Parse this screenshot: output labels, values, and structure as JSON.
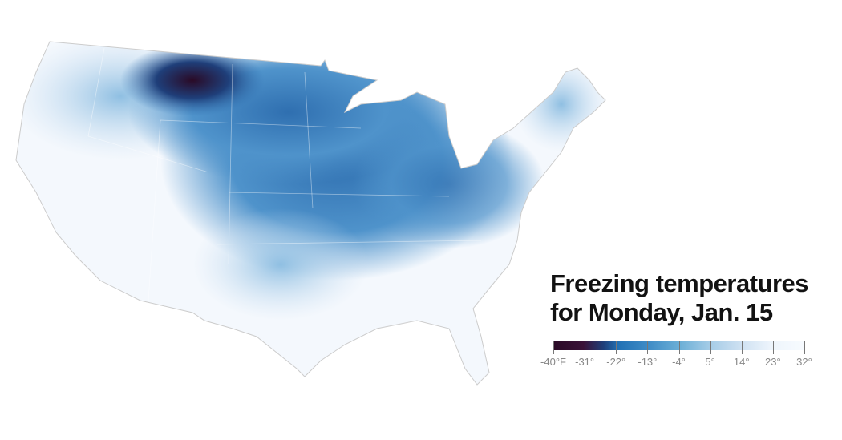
{
  "title_line1": "Freezing temperatures",
  "title_line2": "for Monday, Jan. 15",
  "legend": {
    "labels": [
      "-40°F",
      "-31°",
      "-22°",
      "-13°",
      "-4°",
      "5°",
      "14°",
      "23°",
      "32°"
    ],
    "values": [
      -40,
      -31,
      -22,
      -13,
      -4,
      5,
      14,
      23,
      32
    ],
    "colors": [
      "#2a0a26",
      "#3a1238",
      "#2171b5",
      "#3f8cc6",
      "#6aaed6",
      "#a3cbe6",
      "#cfe1f2",
      "#eef5fc",
      "#f7fbff"
    ]
  },
  "map": {
    "region": "contiguous-united-states",
    "coldest_color": "#2a0a26",
    "cold_color": "#2f78b8",
    "warm_color": "#ffffff"
  }
}
